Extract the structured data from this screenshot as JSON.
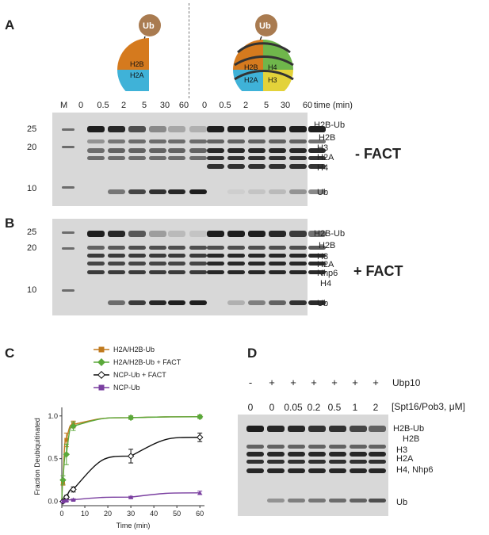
{
  "panel_a": {
    "letter": "A",
    "ub_label": "Ub",
    "dimer_labels": [
      "H2B",
      "H2A"
    ],
    "nucleosome_labels": [
      "H2B",
      "H4",
      "H2A",
      "H3"
    ],
    "marker_label": "M",
    "timepoints": [
      "0",
      "0.5",
      "2",
      "5",
      "30",
      "60",
      "0",
      "0.5",
      "2",
      "5",
      "30",
      "60"
    ],
    "time_unit": "time (min)",
    "mw_markers": [
      "25",
      "20",
      "10"
    ],
    "band_labels": [
      "H2B-Ub",
      "H2B",
      "H3",
      "H2A",
      "H4",
      "Ub"
    ],
    "condition": "- FACT"
  },
  "panel_b": {
    "letter": "B",
    "mw_markers": [
      "25",
      "20",
      "10"
    ],
    "band_labels": [
      "H2B-Ub",
      "H2B",
      "H3",
      "H2A",
      "Nhp6",
      "H4",
      "Ub"
    ],
    "condition": "+ FACT"
  },
  "panel_c": {
    "letter": "C",
    "chart_data": {
      "type": "line",
      "xlabel": "Time (min)",
      "ylabel": "Fraction Deubiquitinated",
      "xlim": [
        0,
        62
      ],
      "ylim": [
        -0.05,
        1.1
      ],
      "xticks": [
        0,
        10,
        20,
        30,
        40,
        50,
        60
      ],
      "yticks": [
        0.0,
        0.5,
        1.0
      ],
      "legend_position": "top",
      "series": [
        {
          "name": "H2A/H2B-Ub",
          "color": "#c07a1e",
          "marker": "square",
          "x": [
            0.5,
            2,
            5,
            30,
            60
          ],
          "y": [
            0.22,
            0.72,
            0.9,
            0.98,
            0.99
          ],
          "err": [
            0.03,
            0.08,
            0.04,
            0.02,
            0.02
          ]
        },
        {
          "name": "H2A/H2B-Ub + FACT",
          "color": "#5aa83a",
          "marker": "diamond",
          "x": [
            0.5,
            2,
            5,
            30,
            60
          ],
          "y": [
            0.25,
            0.55,
            0.88,
            0.98,
            0.99
          ],
          "err": [
            0.05,
            0.12,
            0.05,
            0.02,
            0.02
          ]
        },
        {
          "name": "NCP-Ub + FACT",
          "color": "#111111",
          "marker": "open-diamond",
          "x": [
            0.5,
            2,
            5,
            30,
            60
          ],
          "y": [
            0.0,
            0.05,
            0.14,
            0.53,
            0.75
          ],
          "err": [
            0.01,
            0.02,
            0.03,
            0.08,
            0.05
          ]
        },
        {
          "name": "NCP-Ub",
          "color": "#7a3fa0",
          "marker": "triangle",
          "x": [
            0.5,
            2,
            5,
            30,
            60
          ],
          "y": [
            0.0,
            0.01,
            0.02,
            0.05,
            0.1
          ],
          "err": [
            0.01,
            0.01,
            0.01,
            0.01,
            0.02
          ]
        }
      ]
    }
  },
  "panel_d": {
    "letter": "D",
    "ubp10_signs": [
      "-",
      "+",
      "+",
      "+",
      "+",
      "+",
      "+"
    ],
    "ubp10_label": "Ubp10",
    "concentrations": [
      "0",
      "0",
      "0.05",
      "0.2",
      "0.5",
      "1",
      "2"
    ],
    "conc_label": "[Spt16/Pob3, μM]",
    "band_labels": [
      "H2B-Ub",
      "H2B",
      "H3",
      "H2A",
      "H4, Nhp6",
      "Ub"
    ]
  }
}
